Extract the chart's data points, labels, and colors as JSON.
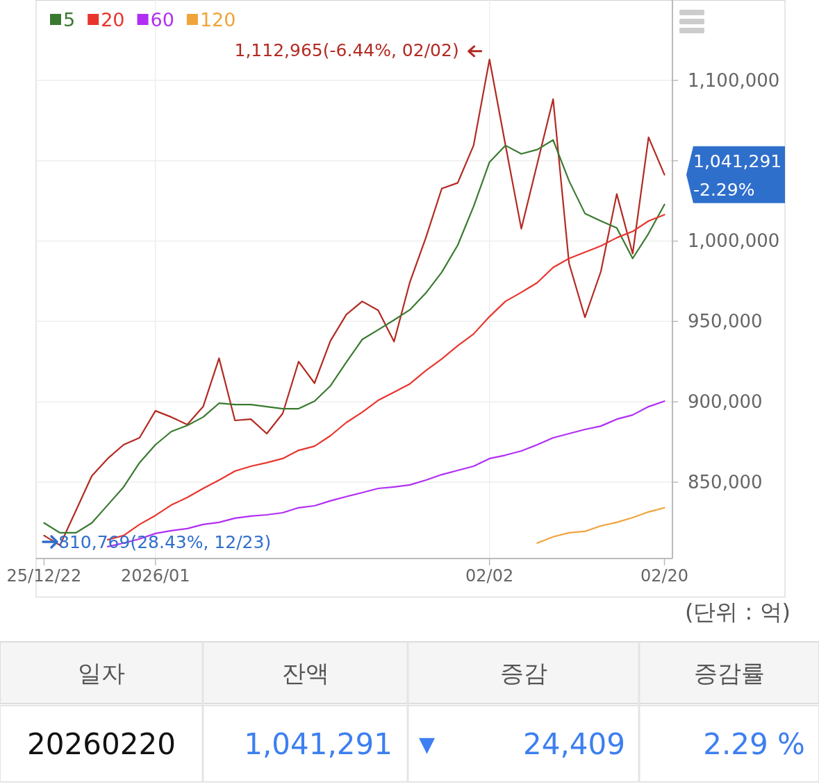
{
  "chart_data": {
    "type": "line",
    "legend": "top left",
    "grid": true,
    "categories": [
      "25/12/22",
      null,
      null,
      null,
      null,
      null,
      null,
      "2026/01",
      null,
      null,
      null,
      null,
      null,
      null,
      null,
      null,
      null,
      null,
      null,
      null,
      null,
      null,
      null,
      null,
      null,
      null,
      null,
      null,
      "02/02",
      null,
      null,
      null,
      null,
      null,
      null,
      null,
      null,
      null,
      null,
      "02/20"
    ],
    "ylim": [
      802500,
      1150000
    ],
    "yticks": [
      {
        "value": 850000,
        "label": "850,000"
      },
      {
        "value": 900000,
        "label": "900,000"
      },
      {
        "value": 950000,
        "label": "950,000"
      },
      {
        "value": 1000000,
        "label": "1,000,000"
      },
      {
        "value": 1050000,
        "label": null
      },
      {
        "value": 1100000,
        "label": "1,100,000"
      }
    ],
    "series": [
      {
        "color": "#b22a22",
        "values": [
          816800,
          810769,
          832300,
          853900,
          864700,
          873300,
          877600,
          894400,
          890500,
          885800,
          897000,
          927100,
          888400,
          889200,
          880200,
          892700,
          925000,
          911600,
          937900,
          954300,
          962500,
          956900,
          937500,
          974600,
          1002100,
          1032700,
          1036200,
          1059500,
          1112965,
          1060000,
          1007700,
          1048000,
          1088300,
          986200,
          952600,
          981000,
          1029300,
          992200,
          1064600,
          1041291
        ]
      },
      {
        "name": "5",
        "color": "#3a7a30",
        "values": [
          824600,
          818500,
          818500,
          824600,
          835800,
          847000,
          862100,
          873300,
          881500,
          885300,
          890500,
          899100,
          898300,
          898300,
          897000,
          895700,
          895700,
          900400,
          909900,
          924600,
          938800,
          944800,
          950900,
          957300,
          967700,
          980600,
          997400,
          1021500,
          1049100,
          1059500,
          1054300,
          1056900,
          1062900,
          1037500,
          1017200,
          1012500,
          1008200,
          989200,
          1004700,
          1022800
        ]
      },
      {
        "name": "20",
        "color": "#e8352e",
        "values": [
          null,
          null,
          null,
          null,
          814200,
          816800,
          823700,
          829300,
          835800,
          840500,
          846100,
          851300,
          856900,
          859900,
          862100,
          864700,
          869800,
          872400,
          878900,
          887100,
          893500,
          900900,
          906000,
          911200,
          919400,
          926700,
          934900,
          942200,
          953000,
          962500,
          968100,
          974100,
          983600,
          989200,
          993100,
          997000,
          1002100,
          1006000,
          1012500,
          1016400
        ]
      },
      {
        "name": "60",
        "color": "#b12ef5",
        "values": [
          null,
          null,
          null,
          null,
          809900,
          812100,
          814700,
          818100,
          819800,
          821100,
          823700,
          825000,
          827600,
          828900,
          829700,
          831000,
          834100,
          835300,
          838400,
          841000,
          843500,
          846100,
          847000,
          848300,
          851300,
          854700,
          857300,
          859900,
          864700,
          866800,
          869400,
          873300,
          877600,
          880200,
          882800,
          884900,
          889200,
          891800,
          897000,
          900400
        ]
      },
      {
        "name": "120",
        "color": "#f0a43c",
        "values": [
          null,
          null,
          null,
          null,
          null,
          null,
          null,
          null,
          null,
          null,
          null,
          null,
          null,
          null,
          null,
          null,
          null,
          null,
          null,
          null,
          null,
          null,
          null,
          null,
          null,
          null,
          null,
          null,
          null,
          null,
          null,
          812100,
          816000,
          818500,
          819400,
          822800,
          825000,
          828000,
          831500,
          834100
        ]
      }
    ],
    "annotations": [
      {
        "text": "1,112,965(-6.44%, 02/02)",
        "x": "02/02",
        "y": 1112965
      },
      "810,769(28.43%, 12/23)",
      {
        "text": "1,041,291 -2.29%",
        "x": "02/20",
        "y": 1041291
      },
      "(단위 : 억)",
      "일자",
      "잔액",
      "증감",
      "증감률",
      "20260220",
      "1,041,291",
      "▼",
      "24,409",
      "2.29 %"
    ]
  }
}
